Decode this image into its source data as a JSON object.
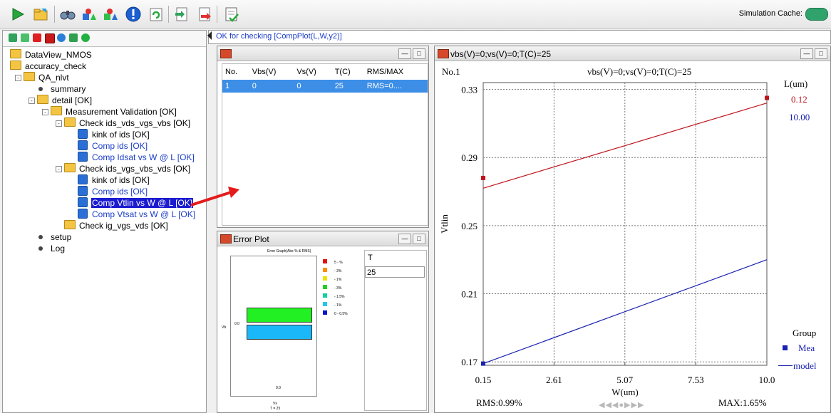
{
  "toolbar": {
    "simulation_cache_label": "Simulation Cache:",
    "buttons": [
      "run-icon",
      "open-folder-icon",
      "binoculars-icon",
      "shapes-icon",
      "shapes-up-icon",
      "info-icon",
      "refresh-icon",
      "export-icon",
      "import-icon",
      "checklist-icon"
    ]
  },
  "left_tools": [
    "green-down-arrow-icon",
    "green-down-arrow2-icon",
    "red-x-icon",
    "red-x-box-icon",
    "cycle-icon",
    "gear-icon",
    "go-icon"
  ],
  "tree": [
    {
      "label": "DataView_NMOS",
      "level": 0,
      "type": "folder",
      "style": "normal"
    },
    {
      "label": "accuracy_check",
      "level": 0,
      "type": "folder",
      "style": "normal"
    },
    {
      "label": "QA_nlvt",
      "level": 1,
      "type": "folder",
      "style": "normal"
    },
    {
      "label": "summary",
      "level": 2,
      "type": "bullet",
      "style": "normal"
    },
    {
      "label": "detail [OK]",
      "level": 2,
      "type": "folder",
      "style": "normal"
    },
    {
      "label": "Measurement Validation [OK]",
      "level": 3,
      "type": "folder",
      "style": "normal"
    },
    {
      "label": "Check ids_vds_vgs_vbs [OK]",
      "level": 4,
      "type": "folder",
      "style": "normal"
    },
    {
      "label": "kink of ids [OK]",
      "level": 5,
      "type": "plot",
      "style": "normal"
    },
    {
      "label": "Comp ids [OK]",
      "level": 5,
      "type": "plot",
      "style": "blue"
    },
    {
      "label": "Comp Idsat vs W @ L [OK]",
      "level": 5,
      "type": "plot",
      "style": "blue"
    },
    {
      "label": "Check ids_vgs_vbs_vds [OK]",
      "level": 4,
      "type": "folder",
      "style": "normal"
    },
    {
      "label": "kink of ids [OK]",
      "level": 5,
      "type": "plot",
      "style": "normal"
    },
    {
      "label": "Comp ids [OK]",
      "level": 5,
      "type": "plot",
      "style": "blue"
    },
    {
      "label": "Comp Vtlin vs W @ L [OK]",
      "level": 5,
      "type": "plot",
      "style": "selected"
    },
    {
      "label": "Comp Vtsat vs W @ L [OK]",
      "level": 5,
      "type": "plot",
      "style": "blue"
    },
    {
      "label": "Check ig_vgs_vds [OK]",
      "level": 4,
      "type": "folder",
      "style": "normal"
    },
    {
      "label": "setup",
      "level": 2,
      "type": "bullet",
      "style": "normal"
    },
    {
      "label": "Log",
      "level": 2,
      "type": "bullet",
      "style": "normal"
    }
  ],
  "status_text": "OK for checking [CompPlot(L,W,y2)]",
  "table_window": {
    "columns": [
      "No.",
      "Vbs(V)",
      "Vs(V)",
      "T(C)",
      "RMS/MAX"
    ],
    "rows": [
      [
        "1",
        "0",
        "0",
        "25",
        "RMS=0...."
      ]
    ]
  },
  "error_window": {
    "title": "Error Plot",
    "mini_title": "Error Graph(Abs % & RMS)",
    "legend": [
      {
        "label": "5 - %",
        "color": "#e01010"
      },
      {
        "label": "- 3%",
        "color": "#ff8c00"
      },
      {
        "label": "- 1%",
        "color": "#f0e000"
      },
      {
        "label": "- 3%",
        "color": "#20d020"
      },
      {
        "label": "- 1.5%",
        "color": "#10d0a0"
      },
      {
        "label": "- 1%",
        "color": "#20c8f0"
      },
      {
        "label": "0 - 0.5%",
        "color": "#1010d0"
      }
    ],
    "y_label": "Vb",
    "y_tick": "0.0",
    "x_tick": "0.0",
    "x_label": "Vs",
    "x_sub": "T = 25",
    "side_header": "T",
    "side_value": "25"
  },
  "plot_window": {
    "title": "vbs(V)=0;vs(V)=0;T(C)=25",
    "plot_no": "No.1",
    "plot_title": "vbs(V)=0;vs(V)=0;T(C)=25",
    "legend_header": "L(um)",
    "legend_items": [
      {
        "label": "0.12",
        "color": "#c0141c"
      },
      {
        "label": "10.00",
        "color": "#1a22b0"
      }
    ],
    "group_header": "Group",
    "group_mea": "Mea",
    "group_model": "model",
    "rms": "RMS:0.99%",
    "max": "MAX:1.65%"
  },
  "chart_data": {
    "type": "line",
    "xlabel": "W(um)",
    "ylabel": "Vtlin",
    "x_ticks": [
      0.15,
      2.61,
      5.07,
      7.53,
      10.0
    ],
    "x_tick_labels": [
      "0.15",
      "2.61",
      "5.07",
      "7.53",
      "10.0"
    ],
    "y_ticks": [
      0.17,
      0.21,
      0.25,
      0.29,
      0.33
    ],
    "y_tick_labels": [
      "0.17",
      "0.21",
      "0.25",
      "0.29",
      "0.33"
    ],
    "xlim": [
      0.15,
      10.0
    ],
    "ylim": [
      0.168,
      0.334
    ],
    "grid": true,
    "series": [
      {
        "name": "0.12",
        "color": "#c0141c",
        "mea": [
          [
            0.15,
            0.278
          ],
          [
            10.0,
            0.325
          ]
        ],
        "model": [
          [
            0.15,
            0.272
          ],
          [
            10.0,
            0.322
          ]
        ]
      },
      {
        "name": "10.00",
        "color": "#1a22b0",
        "mea": [
          [
            0.15,
            0.169
          ]
        ],
        "model": [
          [
            0.15,
            0.169
          ],
          [
            10.0,
            0.23
          ]
        ]
      }
    ]
  }
}
